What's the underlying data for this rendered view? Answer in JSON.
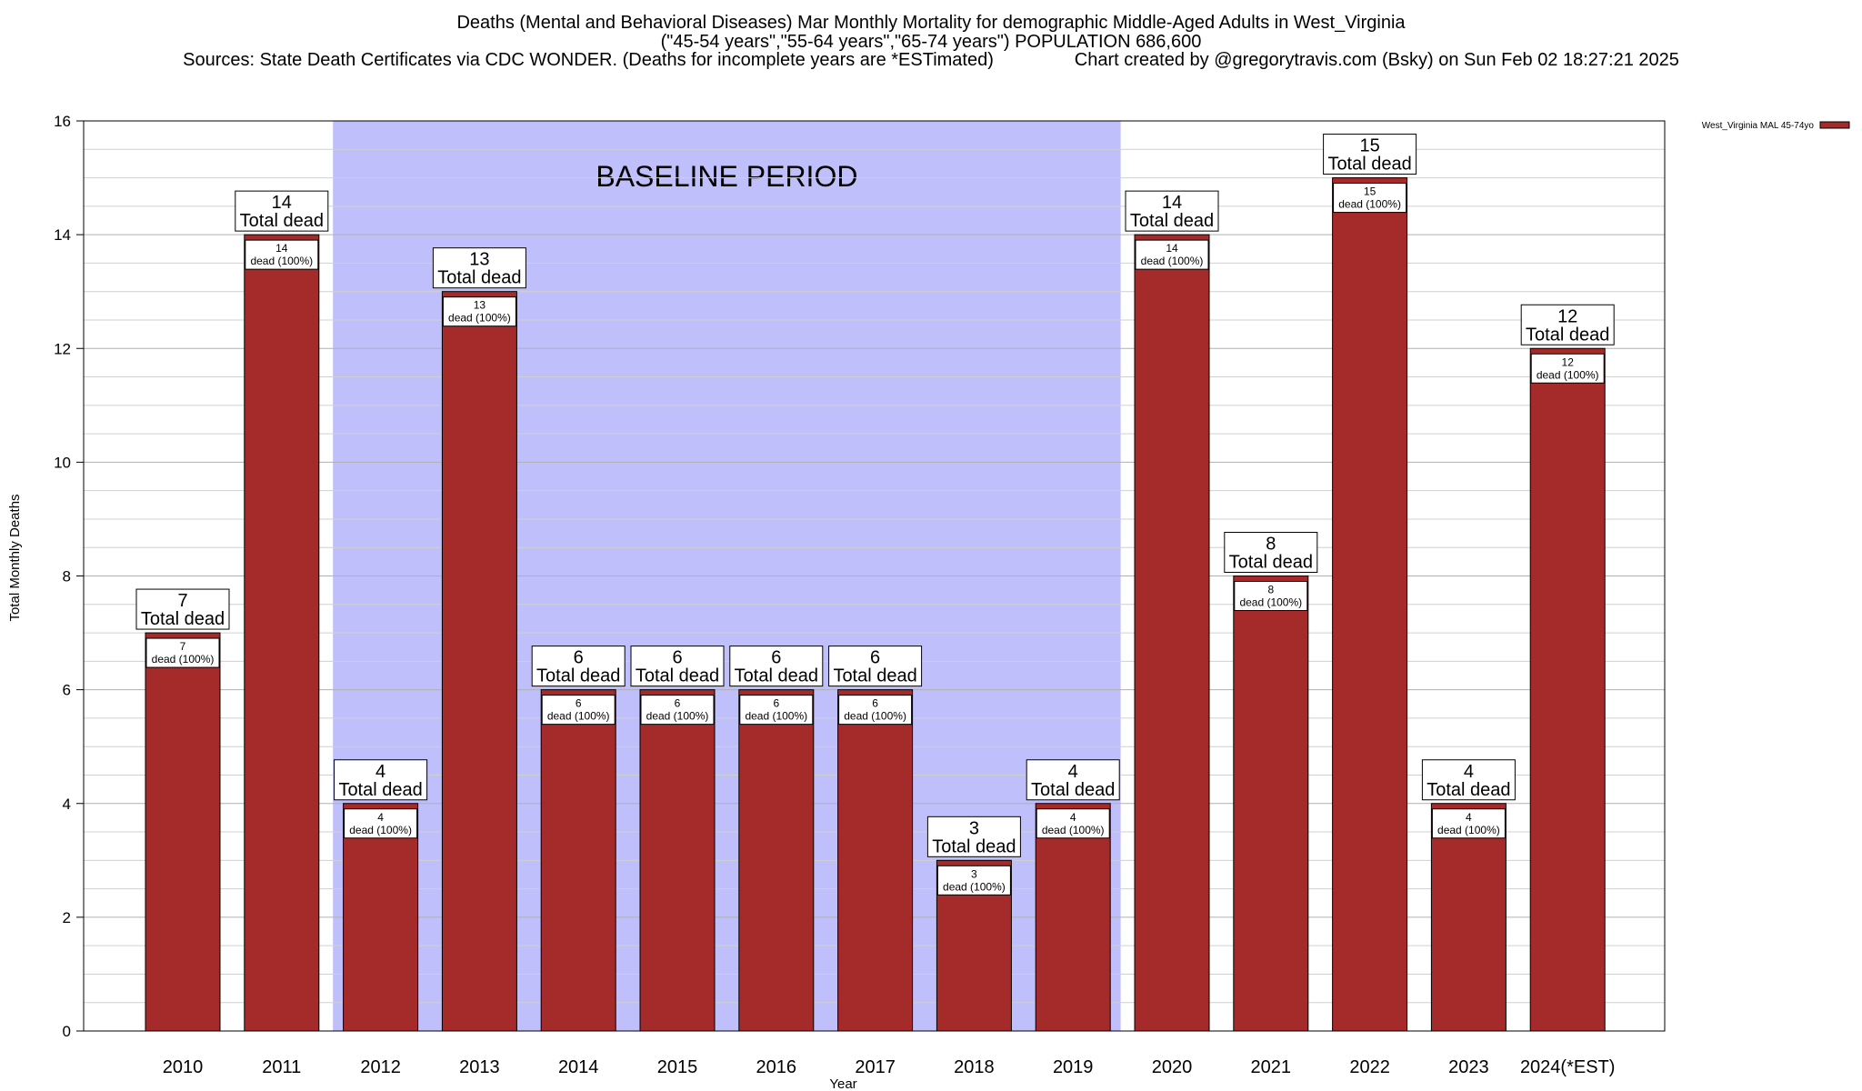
{
  "header": {
    "title_line1": "Deaths (Mental and Behavioral Diseases) Mar Monthly Mortality for demographic Middle-Aged Adults in West_Virginia",
    "title_line2": "(\"45-54 years\",\"55-64 years\",\"65-74 years\") POPULATION 686,600",
    "title_line3": "Sources: State Death Certificates via CDC WONDER. (Deaths for incomplete years are *ESTimated)                Chart created by @gregorytravis.com (Bsky) on Sun Feb 02 18:27:21 2025"
  },
  "chart_data": {
    "type": "bar",
    "categories": [
      "2010",
      "2011",
      "2012",
      "2013",
      "2014",
      "2015",
      "2016",
      "2017",
      "2018",
      "2019",
      "2020",
      "2021",
      "2022",
      "2023",
      "2024(*EST)"
    ],
    "series": [
      {
        "name": "West_Virginia MAL 45-74yo",
        "values": [
          7,
          14,
          4,
          13,
          6,
          6,
          6,
          6,
          3,
          4,
          14,
          8,
          15,
          4,
          12
        ],
        "color": "#a52a2a"
      }
    ],
    "total_label": "Total dead",
    "inner_label_suffix": "dead (100%)",
    "xlabel": "Year",
    "ylabel": "Total Monthly Deaths",
    "ylim": [
      0,
      16
    ],
    "yticks": [
      0,
      2,
      4,
      6,
      8,
      10,
      12,
      14,
      16
    ],
    "grid": true,
    "legend_position": "top-right",
    "annotation": {
      "text": "BASELINE PERIOD",
      "from_category": "2012",
      "to_category": "2019",
      "color": "#bfbffb"
    }
  }
}
